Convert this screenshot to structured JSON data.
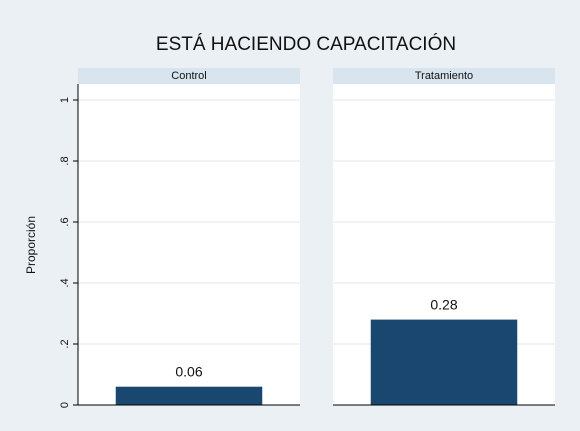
{
  "chart_data": {
    "type": "bar",
    "title": "ESTÁ HACIENDO CAPACITACIÓN",
    "ylabel": "Proporción",
    "categories": [
      "Control",
      "Tratamiento"
    ],
    "values": [
      0.06,
      0.28
    ],
    "color": "#1a476f",
    "ylim": [
      0,
      1
    ],
    "yticks": [
      0,
      {
        "value": 0.2,
        "label": ".2"
      },
      {
        "value": 0.4,
        "label": ".4"
      },
      {
        "value": 0.6,
        "label": ".6"
      },
      {
        "value": 0.8,
        "label": ".8"
      },
      1
    ],
    "grid": true
  }
}
